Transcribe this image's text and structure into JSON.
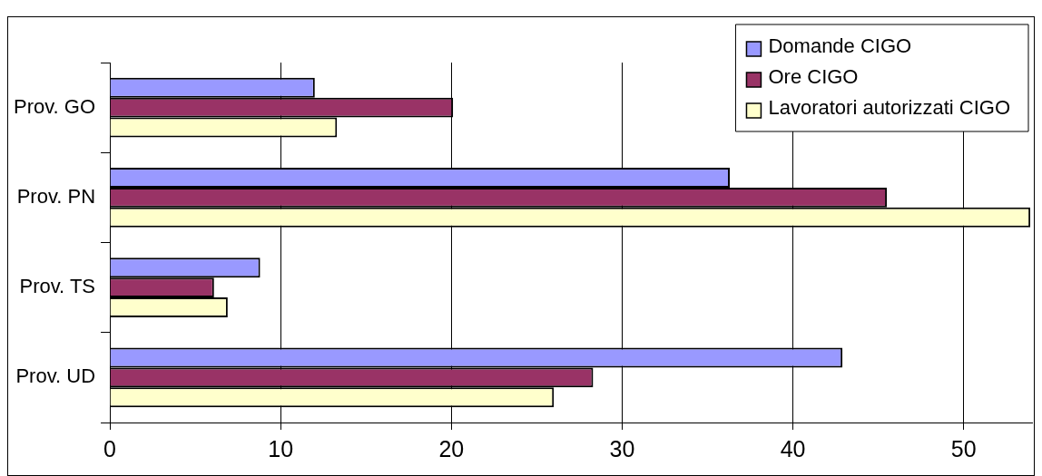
{
  "chart_data": {
    "type": "bar",
    "orientation": "horizontal",
    "categories": [
      "Prov. GO",
      "Prov. PN",
      "Prov. TS",
      "Prov. UD"
    ],
    "series": [
      {
        "name": "Domande CIGO",
        "color": "#9999ff",
        "values": [
          12.0,
          36.3,
          8.8,
          42.9
        ]
      },
      {
        "name": "Ore CIGO",
        "color": "#993366",
        "values": [
          20.1,
          45.5,
          6.1,
          28.3
        ]
      },
      {
        "name": "Lavoratori autorizzati CIGO",
        "color": "#ffffcc",
        "values": [
          13.3,
          53.9,
          6.9,
          26.0
        ]
      }
    ],
    "xlim": [
      0,
      54
    ],
    "xticks": [
      0,
      10,
      20,
      30,
      40,
      50
    ],
    "grid": "x",
    "legend": "top right"
  }
}
